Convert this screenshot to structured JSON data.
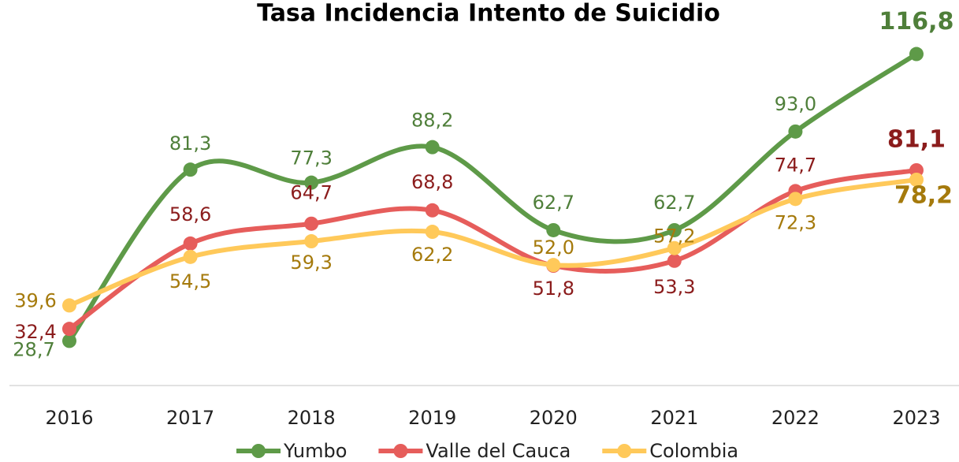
{
  "chart_data": {
    "type": "line",
    "title": "Tasa Incidencia Intento de Suicidio",
    "categories": [
      "2016",
      "2017",
      "2018",
      "2019",
      "2020",
      "2021",
      "2022",
      "2023"
    ],
    "ylim": [
      15,
      130
    ],
    "legend": "bottom",
    "smooth": true,
    "series": [
      {
        "name": "Yumbo",
        "color": "#5e9a48",
        "label_color": "#4f7f3a",
        "values": [
          28.7,
          81.3,
          77.3,
          88.2,
          62.7,
          62.7,
          93.0,
          116.8
        ],
        "value_labels": [
          "28,7",
          "81,3",
          "77,3",
          "88,2",
          "62,7",
          "62,7",
          "93,0",
          "116,8"
        ]
      },
      {
        "name": "Valle del Cauca",
        "color": "#e65d5b",
        "label_color": "#8b1c1c",
        "values": [
          32.4,
          58.6,
          64.7,
          68.8,
          51.8,
          53.3,
          74.7,
          81.1
        ],
        "value_labels": [
          "32,4",
          "58,6",
          "64,7",
          "68,8",
          "51,8",
          "53,3",
          "74,7",
          "81,1"
        ]
      },
      {
        "name": "Colombia",
        "color": "#ffc95a",
        "label_color": "#a57a0c",
        "values": [
          39.6,
          54.5,
          59.3,
          62.2,
          52.0,
          57.2,
          72.3,
          78.2
        ],
        "value_labels": [
          "39,6",
          "54,5",
          "59,3",
          "62,2",
          "52,0",
          "57,2",
          "72,3",
          "78,2"
        ]
      }
    ]
  }
}
